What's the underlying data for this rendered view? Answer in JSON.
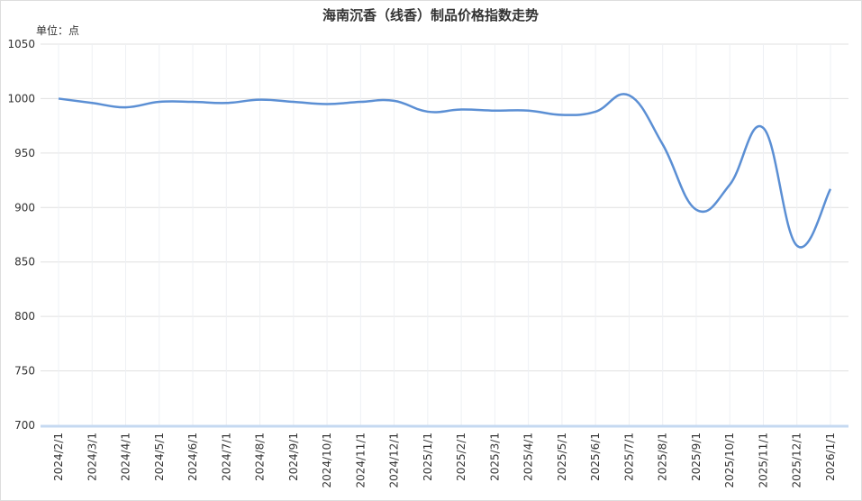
{
  "chart_data": {
    "type": "line",
    "title": "海南沉香（线香）制品价格指数走势",
    "unit_label": "单位：点",
    "categories": [
      "2024/2/1",
      "2024/3/1",
      "2024/4/1",
      "2024/5/1",
      "2024/6/1",
      "2024/7/1",
      "2024/8/1",
      "2024/9/1",
      "2024/10/1",
      "2024/11/1",
      "2024/12/1",
      "2025/1/1",
      "2025/2/1",
      "2025/3/1",
      "2025/4/1",
      "2025/5/1",
      "2025/6/1",
      "2025/7/1",
      "2025/8/1",
      "2025/9/1",
      "2025/10/1",
      "2025/11/1",
      "2025/12/1",
      "2026/1/1"
    ],
    "series": [
      {
        "color": "#5b8fd4",
        "values": [
          1000,
          996,
          992,
          997,
          997,
          996,
          999,
          997,
          995,
          997,
          998,
          988,
          990,
          989,
          989,
          985,
          988,
          1003,
          958,
          898,
          921,
          973,
          865,
          917
        ]
      }
    ],
    "ylim": [
      700,
      1050
    ],
    "yticks": [
      700,
      750,
      800,
      850,
      900,
      950,
      1000,
      1050
    ],
    "grid": true
  }
}
